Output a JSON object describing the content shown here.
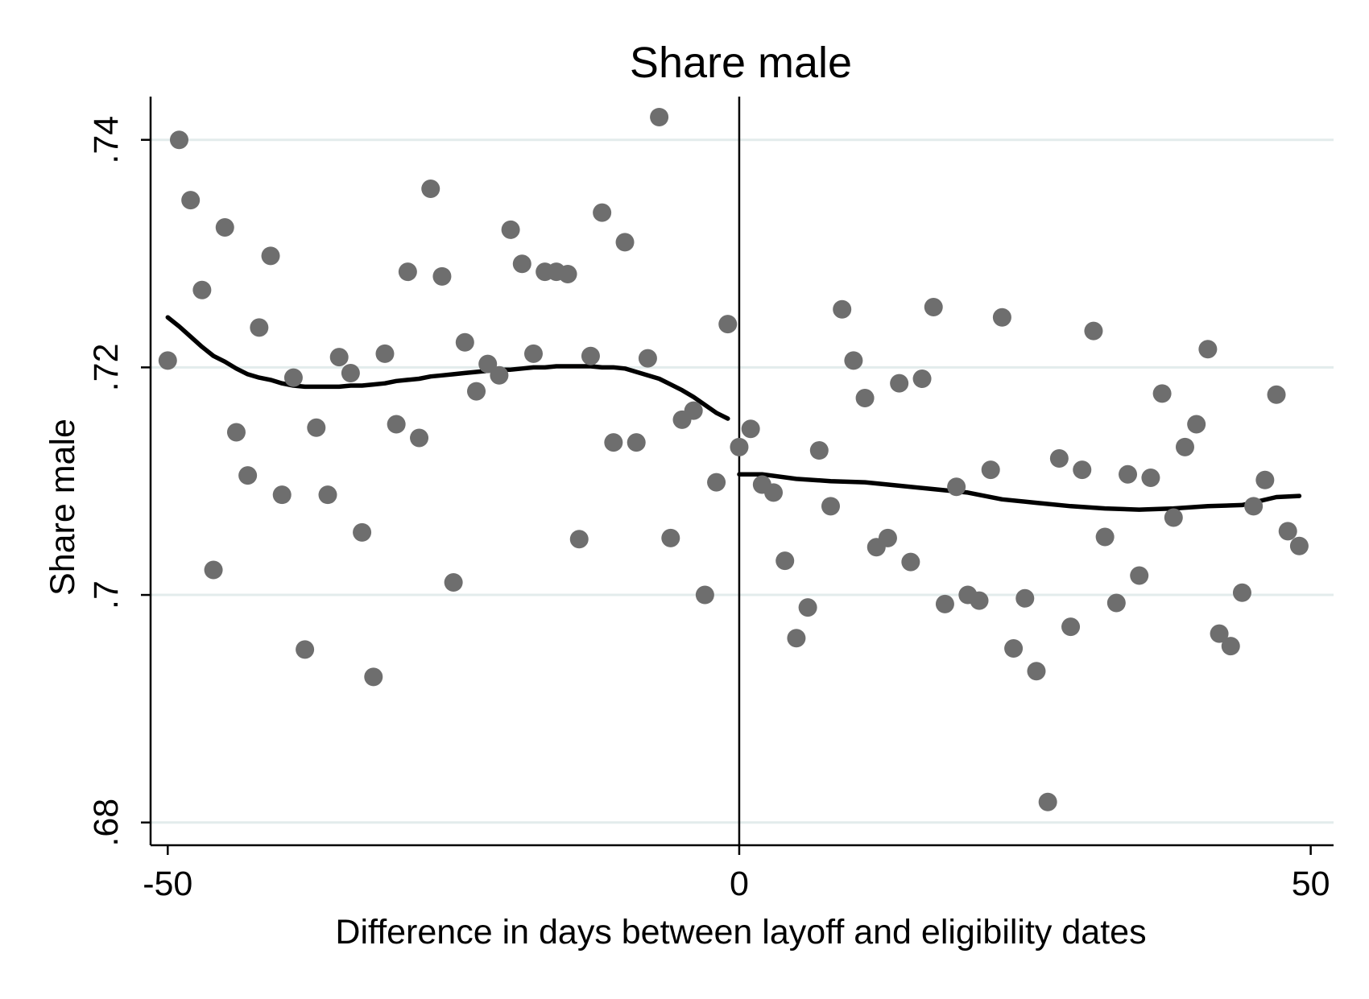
{
  "chart_data": {
    "type": "scatter",
    "title": "Share male",
    "xlabel": "Difference in days between layoff and eligibility dates",
    "ylabel": "Share male",
    "xlim": [
      -51.5,
      52
    ],
    "ylim": [
      0.678,
      0.7438
    ],
    "x_ticks": [
      -50,
      0,
      50
    ],
    "x_tick_labels": [
      "-50",
      "0",
      "50"
    ],
    "y_ticks": [
      0.68,
      0.7,
      0.72,
      0.74
    ],
    "y_tick_labels": [
      ".68",
      ".7",
      ".72",
      ".74"
    ],
    "grid": "horizontal",
    "cutoff_line_x": 0,
    "colors": {
      "points": "#6e6e6e",
      "fit_line": "#000000",
      "grid": "#e3ecec",
      "axes": "#000000"
    },
    "series": [
      {
        "kind": "points",
        "x": [
          -50,
          -49,
          -48,
          -47,
          -46,
          -45,
          -44,
          -43,
          -42,
          -41,
          -40,
          -39,
          -38,
          -37,
          -36,
          -35,
          -34,
          -33,
          -32,
          -31,
          -30,
          -29,
          -28,
          -27,
          -26,
          -25,
          -24,
          -23,
          -22,
          -21,
          -20,
          -19,
          -18,
          -17,
          -16,
          -15,
          -14,
          -13,
          -12,
          -11,
          -10,
          -9,
          -8,
          -7,
          -6,
          -5,
          -4,
          -3,
          -2,
          -1,
          0,
          1,
          2,
          3,
          4,
          5,
          6,
          7,
          8,
          9,
          10,
          11,
          12,
          13,
          14,
          15,
          16,
          17,
          18,
          19,
          20,
          21,
          22,
          23,
          24,
          25,
          26,
          27,
          28,
          29,
          30,
          31,
          32,
          33,
          34,
          35,
          36,
          37,
          38,
          39,
          40,
          41,
          42,
          43,
          44,
          45,
          46,
          47,
          48,
          49
        ],
        "y": [
          0.7206,
          0.74,
          0.7347,
          0.7268,
          0.7022,
          0.7323,
          0.7143,
          0.7105,
          0.7235,
          0.7298,
          0.7088,
          0.7191,
          0.6952,
          0.7147,
          0.7088,
          0.7209,
          0.7195,
          0.7055,
          0.6928,
          0.7212,
          0.715,
          0.7284,
          0.7138,
          0.7357,
          0.728,
          0.7011,
          0.7222,
          0.7179,
          0.7203,
          0.7193,
          0.7321,
          0.7291,
          0.7212,
          0.7284,
          0.7284,
          0.7282,
          0.7049,
          0.721,
          0.7336,
          0.7134,
          0.731,
          0.7134,
          0.7208,
          0.742,
          0.705,
          0.7154,
          0.7162,
          0.7,
          0.7099,
          0.7238,
          0.713,
          0.7146,
          0.7097,
          0.709,
          0.703,
          0.6962,
          0.6989,
          0.7127,
          0.7078,
          0.7251,
          0.7206,
          0.7173,
          0.7042,
          0.705,
          0.7186,
          0.7029,
          0.719,
          0.7253,
          0.6992,
          0.7095,
          0.7,
          0.6995,
          0.711,
          0.7244,
          0.6953,
          0.6997,
          0.6933,
          0.6818,
          0.712,
          0.6972,
          0.711,
          0.7232,
          0.7051,
          0.6993,
          0.7106,
          0.7017,
          0.7103,
          0.7177,
          0.7068,
          0.713,
          0.715,
          0.7216,
          0.6966,
          0.6955,
          0.7002,
          0.7078,
          0.7101,
          0.7176,
          0.7056,
          0.7043
        ]
      },
      {
        "kind": "fit-left",
        "x": [
          -50,
          -49,
          -48,
          -47,
          -46,
          -45,
          -44,
          -43,
          -42,
          -41,
          -40,
          -39,
          -38,
          -37,
          -36,
          -35,
          -34,
          -33,
          -32,
          -31,
          -30,
          -29,
          -28,
          -27,
          -26,
          -25,
          -24,
          -23,
          -22,
          -21,
          -20,
          -19,
          -18,
          -17,
          -16,
          -15,
          -14,
          -13,
          -12,
          -11,
          -10,
          -9,
          -8,
          -7,
          -6,
          -5,
          -4,
          -3,
          -2,
          -1
        ],
        "y": [
          0.7244,
          0.7236,
          0.7227,
          0.7218,
          0.721,
          0.7205,
          0.7199,
          0.7194,
          0.7191,
          0.7189,
          0.7186,
          0.7184,
          0.7183,
          0.7183,
          0.7183,
          0.7183,
          0.7184,
          0.7184,
          0.7185,
          0.7186,
          0.7188,
          0.7189,
          0.719,
          0.7192,
          0.7193,
          0.7194,
          0.7195,
          0.7196,
          0.7197,
          0.7198,
          0.7198,
          0.7199,
          0.72,
          0.72,
          0.7201,
          0.7201,
          0.7201,
          0.7201,
          0.72,
          0.72,
          0.7199,
          0.7196,
          0.7193,
          0.719,
          0.7185,
          0.718,
          0.7174,
          0.7167,
          0.716,
          0.7155
        ]
      },
      {
        "kind": "fit-right",
        "x": [
          0,
          2,
          5,
          8,
          11,
          14,
          17,
          20,
          23,
          26,
          29,
          32,
          35,
          38,
          41,
          44,
          47,
          49
        ],
        "y": [
          0.7106,
          0.7106,
          0.7102,
          0.71,
          0.7099,
          0.7096,
          0.7093,
          0.709,
          0.7084,
          0.7081,
          0.7078,
          0.7076,
          0.7075,
          0.7076,
          0.7078,
          0.7079,
          0.7086,
          0.7087
        ]
      }
    ]
  }
}
